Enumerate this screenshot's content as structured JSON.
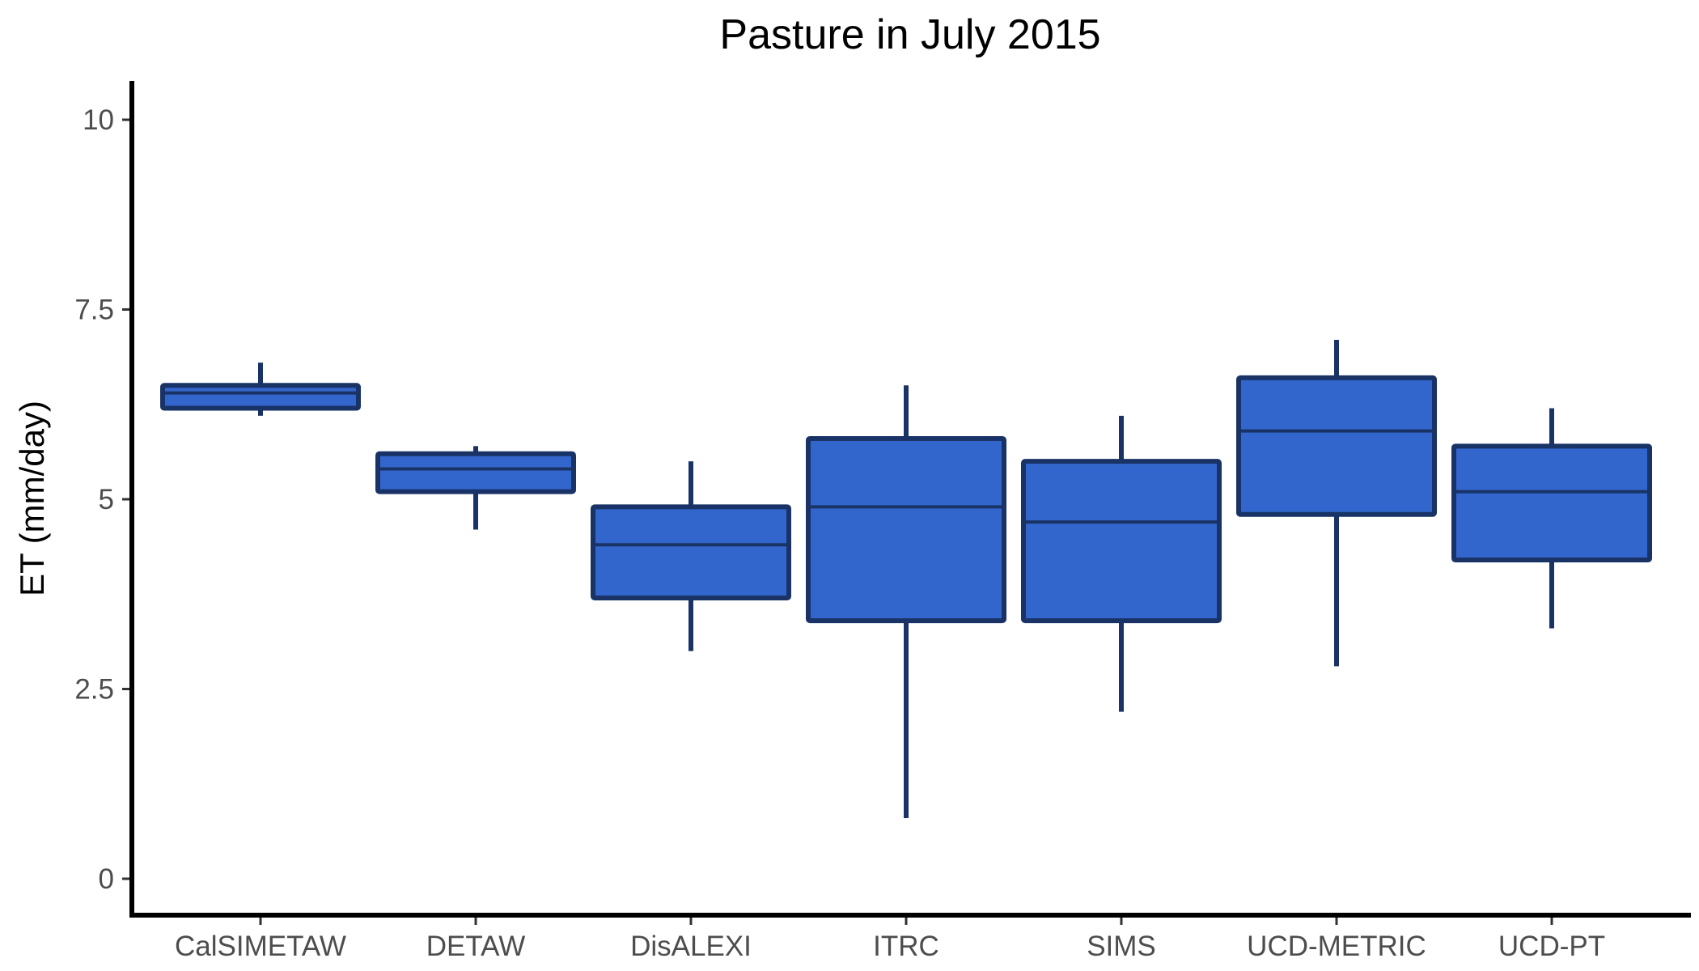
{
  "chart_data": {
    "type": "boxplot",
    "title": "Pasture in July 2015",
    "xlabel": "",
    "ylabel": "ET (mm/day)",
    "ylim": [
      -0.5,
      10.5
    ],
    "yticks": [
      0,
      2.5,
      5,
      7.5,
      10
    ],
    "ytick_labels": [
      "0",
      "2.5",
      "5",
      "7.5",
      "10"
    ],
    "grid": false,
    "legend": "none",
    "categories": [
      "CalSIMETAW",
      "DETAW",
      "DisALEXI",
      "ITRC",
      "SIMS",
      "UCD-METRIC",
      "UCD-PT"
    ],
    "boxes": [
      {
        "label": "CalSIMETAW",
        "whisker_low": 6.1,
        "q1": 6.2,
        "median": 6.4,
        "q3": 6.5,
        "whisker_high": 6.8
      },
      {
        "label": "DETAW",
        "whisker_low": 4.6,
        "q1": 5.1,
        "median": 5.4,
        "q3": 5.6,
        "whisker_high": 5.7
      },
      {
        "label": "DisALEXI",
        "whisker_low": 3.0,
        "q1": 3.7,
        "median": 4.4,
        "q3": 4.9,
        "whisker_high": 5.5
      },
      {
        "label": "ITRC",
        "whisker_low": 0.8,
        "q1": 3.4,
        "median": 4.9,
        "q3": 5.8,
        "whisker_high": 6.5
      },
      {
        "label": "SIMS",
        "whisker_low": 2.2,
        "q1": 3.4,
        "median": 4.7,
        "q3": 5.5,
        "whisker_high": 6.1
      },
      {
        "label": "UCD-METRIC",
        "whisker_low": 2.8,
        "q1": 4.8,
        "median": 5.9,
        "q3": 6.6,
        "whisker_high": 7.1
      },
      {
        "label": "UCD-PT",
        "whisker_low": 3.3,
        "q1": 4.2,
        "median": 5.1,
        "q3": 5.7,
        "whisker_high": 6.2
      }
    ],
    "colors": {
      "box_fill": "#3366cc",
      "box_stroke": "#1a3366",
      "axis": "#000000",
      "tick_text": "#4d4d4d"
    }
  }
}
